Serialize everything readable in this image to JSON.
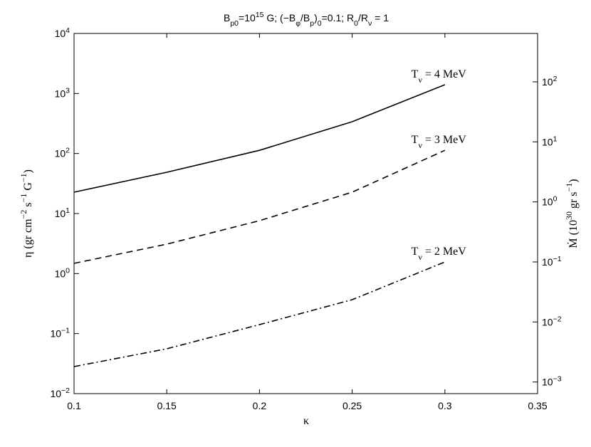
{
  "chart_data": {
    "type": "line",
    "title": "B_{p0}=10^{15} G;  (−B_{φ}/B_{p})_{0}=0.1;   R_{0}/R_{ν} = 1",
    "x_label": "κ",
    "y_label": "η  (gr cm^{−2} s^{−1} G^{−1})",
    "y2_label": "Ṁ  (10^{30}  gr s^{−1})",
    "log_y": true,
    "log_y2": true,
    "xlim": [
      0.1,
      0.35
    ],
    "xticks": [
      0.1,
      0.15,
      0.2,
      0.25,
      0.3,
      0.35
    ],
    "ylim": [
      0.01,
      10000
    ],
    "yticks": [
      {
        "value": 0.01,
        "label": "10^{−2}"
      },
      {
        "value": 0.1,
        "label": "10^{−1}"
      },
      {
        "value": 1,
        "label": "10^{0}"
      },
      {
        "value": 10,
        "label": "10^{1}"
      },
      {
        "value": 100,
        "label": "10^{2}"
      },
      {
        "value": 1000,
        "label": "10^{3}"
      },
      {
        "value": 10000,
        "label": "10^{4}"
      }
    ],
    "y2lim": [
      0.00064,
      640
    ],
    "y2ticks": [
      {
        "value": 0.001,
        "label": "10^{−3}"
      },
      {
        "value": 0.01,
        "label": "10^{−2}"
      },
      {
        "value": 0.1,
        "label": "10^{−1}"
      },
      {
        "value": 1,
        "label": "10^{0}"
      },
      {
        "value": 10,
        "label": "10^{1}"
      },
      {
        "value": 100,
        "label": "10^{2}"
      }
    ],
    "x": [
      0.1,
      0.15,
      0.2,
      0.25,
      0.3
    ],
    "series": [
      {
        "name": "T_{ν} = 4 MeV",
        "color": "#000000",
        "dash": "solid",
        "values": [
          22.7,
          48.7,
          113,
          339,
          1400
        ]
      },
      {
        "name": "T_{ν} = 3 MeV",
        "color": "#000000",
        "dash": "dashed",
        "values": [
          1.48,
          3.09,
          7.6,
          22.7,
          113
        ]
      },
      {
        "name": "T_{ν} = 2 MeV",
        "color": "#000000",
        "dash": "dashdot",
        "values": [
          0.0282,
          0.0558,
          0.141,
          0.367,
          1.56
        ]
      }
    ]
  }
}
